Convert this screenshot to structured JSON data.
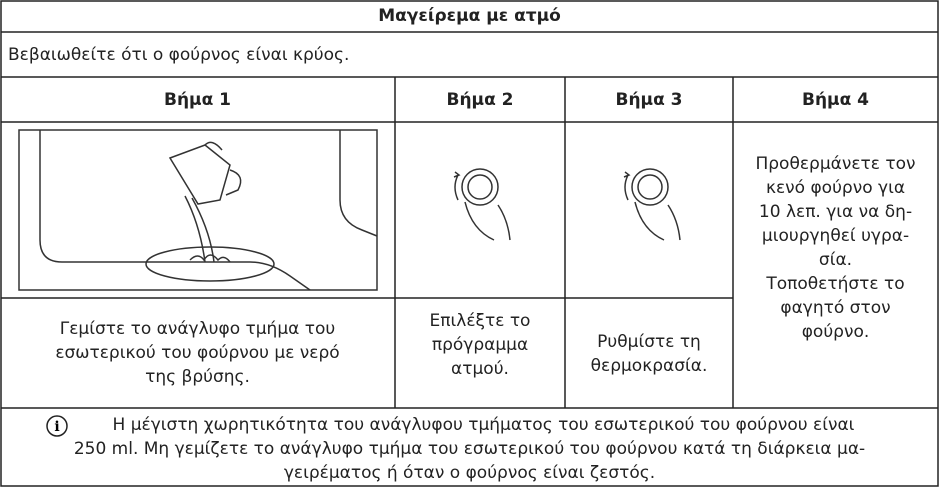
{
  "title": "Μαγείρεμα με ατμό",
  "intro": "Βεβαιωθείτε ότι ο φούρνος είναι κρύος.",
  "steps": [
    {
      "heading": "Βήμα 1",
      "lines": [
        "Γεμίστε το ανάγλυφο τμήμα του",
        "εσωτερικού του φούρνου με νερό",
        "της βρύσης."
      ]
    },
    {
      "heading": "Βήμα 2",
      "lines": [
        "Επιλέξτε το",
        "πρόγραμμα",
        "ατμού."
      ]
    },
    {
      "heading": "Βήμα 3",
      "lines": [
        "Ρυθμίστε τη",
        "θερμοκρασία."
      ]
    },
    {
      "heading": "Βήμα 4",
      "lines": [
        "Προθερμάνετε τον",
        "κενό φούρνο για",
        "10 λεπ. για να δη-",
        "μιουργηθεί υγρα-",
        "σία.",
        "Τοποθετήστε το",
        "φαγητό στον",
        "φούρνο."
      ]
    }
  ],
  "note": {
    "lines": [
      "Η μέγιστη χωρητικότητα του ανάγλυφου τμήματος του εσωτερικού του φούρνου είναι",
      "250 ml. Μη γεμίζετε το ανάγλυφο τμήμα του εσωτερικού του φούρνου κατά τη διάρκεια μα-",
      "γειρέματος ή όταν ο φούρνος είναι ζεστός."
    ]
  }
}
